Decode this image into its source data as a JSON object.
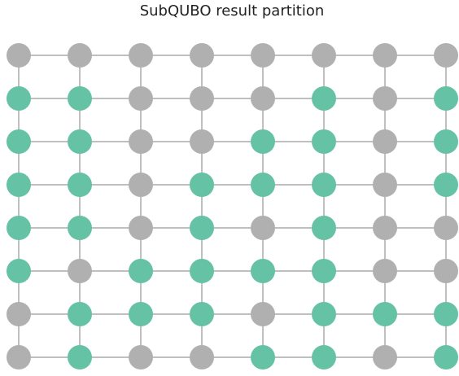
{
  "title": "SubQUBO result partition",
  "groups": [
    {
      "color": "#b0b0b0"
    },
    {
      "color": "#66c2a5"
    }
  ],
  "grid": [
    [
      0,
      0,
      0,
      0,
      0,
      0,
      0,
      0
    ],
    [
      1,
      1,
      0,
      0,
      0,
      1,
      0,
      1
    ],
    [
      1,
      1,
      0,
      0,
      1,
      1,
      0,
      1
    ],
    [
      1,
      1,
      0,
      1,
      1,
      1,
      0,
      1
    ],
    [
      1,
      1,
      0,
      1,
      0,
      1,
      0,
      0
    ],
    [
      1,
      0,
      1,
      1,
      1,
      1,
      0,
      0
    ],
    [
      0,
      1,
      1,
      1,
      0,
      1,
      1,
      1
    ],
    [
      0,
      1,
      0,
      0,
      1,
      1,
      0,
      1
    ]
  ]
}
